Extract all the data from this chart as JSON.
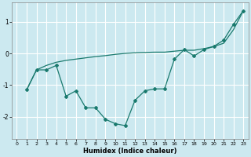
{
  "xlabel": "Humidex (Indice chaleur)",
  "background_color": "#cce9f0",
  "grid_color": "#ffffff",
  "line_color": "#1a7a6e",
  "xlim": [
    -0.5,
    23.5
  ],
  "ylim": [
    -2.7,
    1.6
  ],
  "yticks": [
    -2,
    -1,
    0,
    1
  ],
  "xticks": [
    0,
    1,
    2,
    3,
    4,
    5,
    6,
    7,
    8,
    9,
    10,
    11,
    12,
    13,
    14,
    15,
    16,
    17,
    18,
    19,
    20,
    21,
    22,
    23
  ],
  "line1_x": [
    1,
    2,
    3,
    4,
    5,
    6,
    7,
    8,
    9,
    10,
    11,
    12,
    13,
    14,
    15,
    16,
    17,
    18,
    19,
    20,
    21,
    22,
    23
  ],
  "line1_y": [
    -1.15,
    -0.52,
    -0.38,
    -0.28,
    -0.22,
    -0.18,
    -0.14,
    -0.1,
    -0.07,
    -0.03,
    0.0,
    0.02,
    0.03,
    0.04,
    0.04,
    0.07,
    0.1,
    0.1,
    0.15,
    0.22,
    0.32,
    0.75,
    1.35
  ],
  "line2_x": [
    1,
    2,
    3,
    4,
    5,
    6,
    7,
    8,
    9,
    10,
    11,
    12,
    13,
    14,
    15,
    16,
    17,
    18,
    19,
    20,
    21,
    22,
    23
  ],
  "line2_y": [
    -1.15,
    -0.52,
    -0.52,
    -0.38,
    -1.35,
    -1.18,
    -1.72,
    -1.72,
    -2.08,
    -2.22,
    -2.28,
    -1.48,
    -1.18,
    -1.12,
    -1.12,
    -0.18,
    0.12,
    -0.08,
    0.12,
    0.22,
    0.42,
    0.92,
    1.35
  ]
}
